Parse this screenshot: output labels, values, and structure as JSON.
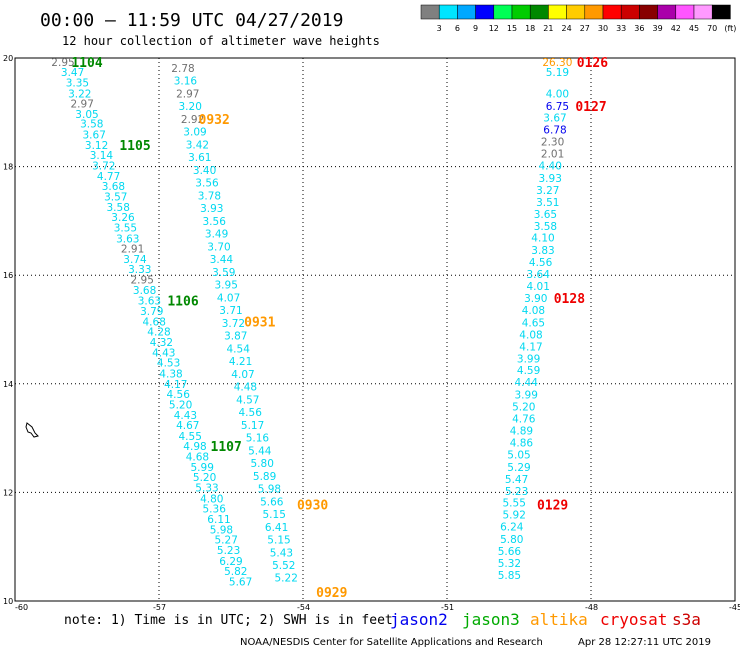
{
  "header": {
    "title": "00:00 — 11:59 UTC 04/27/2019",
    "subtitle": "12 hour collection of altimeter wave heights"
  },
  "colorbar": {
    "labels": [
      "3",
      "6",
      "9",
      "12",
      "15",
      "18",
      "21",
      "24",
      "27",
      "30",
      "33",
      "36",
      "39",
      "42",
      "45",
      "70",
      "(ft)"
    ],
    "colors": [
      "#808080",
      "#00e5ff",
      "#00a8ff",
      "#0000ff",
      "#00ff55",
      "#00cc00",
      "#008800",
      "#ffff00",
      "#ffcc00",
      "#ff9900",
      "#ff0000",
      "#cc0000",
      "#880000",
      "#aa00aa",
      "#ff55ff",
      "#ff99ff",
      "#000000"
    ]
  },
  "footer": {
    "note": "note: 1) Time is in UTC; 2) SWH is in feet",
    "credit": "NOAA/NESDIS Center for Satellite Applications and Research",
    "timestamp": "Apr 28 12:27:11 UTC 2019",
    "satellites": [
      {
        "name": "jason2",
        "color": "#0000ee"
      },
      {
        "name": "jason3",
        "color": "#00aa00"
      },
      {
        "name": "altika",
        "color": "#ff9900"
      },
      {
        "name": "cryosat",
        "color": "#ee0000"
      },
      {
        "name": "s3a",
        "color": "#cc0000"
      }
    ]
  },
  "chart_data": {
    "type": "scatter",
    "title": "00:00 — 11:59 UTC 04/27/2019",
    "subtitle": "12 hour collection of altimeter wave heights",
    "xlabel": "",
    "ylabel": "",
    "xlim": [
      -60,
      -45
    ],
    "ylim": [
      10,
      20
    ],
    "xticks": [
      -60,
      -57,
      -54,
      -51,
      -48,
      -45
    ],
    "xtick_labels": [
      "-60",
      "-57",
      "-54",
      "-51",
      "-48",
      "-45"
    ],
    "yticks": [
      10,
      12,
      14,
      16,
      18,
      20
    ],
    "ytick_labels": [
      "10",
      "12",
      "14",
      "16",
      "18",
      "20"
    ],
    "grid": true,
    "palette": {
      "gray": "#707070",
      "cyan": "#00d8f0",
      "orange": "#ff9900",
      "green": "#008800",
      "red": "#ee0000",
      "blue": "#0000ee"
    },
    "swh_value_labels": [
      {
        "x": -59.0,
        "y": 19.93,
        "text": "2.95",
        "c": "gray"
      },
      {
        "x": -58.8,
        "y": 19.74,
        "text": "3.47",
        "c": "cyan"
      },
      {
        "x": -58.7,
        "y": 19.55,
        "text": "3.35",
        "c": "cyan"
      },
      {
        "x": -58.65,
        "y": 19.35,
        "text": "3.22",
        "c": "cyan"
      },
      {
        "x": -58.6,
        "y": 19.16,
        "text": "2.97",
        "c": "gray"
      },
      {
        "x": -58.5,
        "y": 18.97,
        "text": "3.05",
        "c": "cyan"
      },
      {
        "x": -58.4,
        "y": 18.79,
        "text": "3.58",
        "c": "cyan"
      },
      {
        "x": -58.35,
        "y": 18.59,
        "text": "3.67",
        "c": "cyan"
      },
      {
        "x": -58.3,
        "y": 18.4,
        "text": "3.12",
        "c": "cyan"
      },
      {
        "x": -58.2,
        "y": 18.21,
        "text": "3.14",
        "c": "cyan"
      },
      {
        "x": -58.15,
        "y": 18.02,
        "text": "3.72",
        "c": "cyan"
      },
      {
        "x": -58.05,
        "y": 17.83,
        "text": "4.77",
        "c": "cyan"
      },
      {
        "x": -57.95,
        "y": 17.64,
        "text": "3.68",
        "c": "cyan"
      },
      {
        "x": -57.9,
        "y": 17.45,
        "text": "3.57",
        "c": "cyan"
      },
      {
        "x": -57.85,
        "y": 17.26,
        "text": "3.58",
        "c": "cyan"
      },
      {
        "x": -57.75,
        "y": 17.07,
        "text": "3.26",
        "c": "cyan"
      },
      {
        "x": -57.7,
        "y": 16.88,
        "text": "3.55",
        "c": "cyan"
      },
      {
        "x": -57.65,
        "y": 16.68,
        "text": "3.63",
        "c": "cyan"
      },
      {
        "x": -57.55,
        "y": 16.49,
        "text": "2.91",
        "c": "gray"
      },
      {
        "x": -57.5,
        "y": 16.3,
        "text": "3.74",
        "c": "cyan"
      },
      {
        "x": -57.4,
        "y": 16.11,
        "text": "3.33",
        "c": "cyan"
      },
      {
        "x": -57.35,
        "y": 15.92,
        "text": "2.95",
        "c": "gray"
      },
      {
        "x": -57.3,
        "y": 15.73,
        "text": "3.68",
        "c": "cyan"
      },
      {
        "x": -57.2,
        "y": 15.53,
        "text": "3.63",
        "c": "cyan"
      },
      {
        "x": -57.15,
        "y": 15.34,
        "text": "3.79",
        "c": "cyan"
      },
      {
        "x": -57.1,
        "y": 15.15,
        "text": "4.68",
        "c": "cyan"
      },
      {
        "x": -57.0,
        "y": 14.96,
        "text": "4.28",
        "c": "cyan"
      },
      {
        "x": -56.95,
        "y": 14.77,
        "text": "4.32",
        "c": "cyan"
      },
      {
        "x": -56.9,
        "y": 14.58,
        "text": "4.43",
        "c": "cyan"
      },
      {
        "x": -56.8,
        "y": 14.39,
        "text": "4.53",
        "c": "cyan"
      },
      {
        "x": -56.75,
        "y": 14.19,
        "text": "4.38",
        "c": "cyan"
      },
      {
        "x": -56.65,
        "y": 14.0,
        "text": "4.17",
        "c": "cyan"
      },
      {
        "x": -56.6,
        "y": 13.81,
        "text": "4.56",
        "c": "cyan"
      },
      {
        "x": -56.55,
        "y": 13.62,
        "text": "5.20",
        "c": "cyan"
      },
      {
        "x": -56.45,
        "y": 13.43,
        "text": "4.43",
        "c": "cyan"
      },
      {
        "x": -56.4,
        "y": 13.24,
        "text": "4.67",
        "c": "cyan"
      },
      {
        "x": -56.35,
        "y": 13.04,
        "text": "4.55",
        "c": "cyan"
      },
      {
        "x": -56.25,
        "y": 12.85,
        "text": "4.98",
        "c": "cyan"
      },
      {
        "x": -56.2,
        "y": 12.66,
        "text": "4.68",
        "c": "cyan"
      },
      {
        "x": -56.1,
        "y": 12.47,
        "text": "5.99",
        "c": "cyan"
      },
      {
        "x": -56.05,
        "y": 12.28,
        "text": "5.20",
        "c": "cyan"
      },
      {
        "x": -56.0,
        "y": 12.09,
        "text": "5.33",
        "c": "cyan"
      },
      {
        "x": -55.9,
        "y": 11.89,
        "text": "4.80",
        "c": "cyan"
      },
      {
        "x": -55.85,
        "y": 11.7,
        "text": "5.36",
        "c": "cyan"
      },
      {
        "x": -55.75,
        "y": 11.51,
        "text": "6.11",
        "c": "cyan"
      },
      {
        "x": -55.7,
        "y": 11.32,
        "text": "5.98",
        "c": "cyan"
      },
      {
        "x": -55.6,
        "y": 11.13,
        "text": "5.27",
        "c": "cyan"
      },
      {
        "x": -55.55,
        "y": 10.94,
        "text": "5.23",
        "c": "cyan"
      },
      {
        "x": -55.5,
        "y": 10.74,
        "text": "6.29",
        "c": "cyan"
      },
      {
        "x": -55.4,
        "y": 10.55,
        "text": "5.82",
        "c": "cyan"
      },
      {
        "x": -55.3,
        "y": 10.36,
        "text": "5.67",
        "c": "cyan"
      },
      {
        "x": -56.5,
        "y": 19.82,
        "text": "2.78",
        "c": "gray"
      },
      {
        "x": -56.45,
        "y": 19.59,
        "text": "3.16",
        "c": "cyan"
      },
      {
        "x": -56.4,
        "y": 19.35,
        "text": "2.97",
        "c": "gray"
      },
      {
        "x": -56.35,
        "y": 19.12,
        "text": "3.20",
        "c": "cyan"
      },
      {
        "x": -56.3,
        "y": 18.88,
        "text": "2.92",
        "c": "gray"
      },
      {
        "x": -56.25,
        "y": 18.65,
        "text": "3.09",
        "c": "cyan"
      },
      {
        "x": -56.2,
        "y": 18.41,
        "text": "3.42",
        "c": "cyan"
      },
      {
        "x": -56.15,
        "y": 18.18,
        "text": "3.61",
        "c": "cyan"
      },
      {
        "x": -56.05,
        "y": 17.94,
        "text": "3.40",
        "c": "cyan"
      },
      {
        "x": -56.0,
        "y": 17.71,
        "text": "3.56",
        "c": "cyan"
      },
      {
        "x": -55.95,
        "y": 17.47,
        "text": "3.78",
        "c": "cyan"
      },
      {
        "x": -55.9,
        "y": 17.24,
        "text": "3.93",
        "c": "cyan"
      },
      {
        "x": -55.85,
        "y": 17.0,
        "text": "3.56",
        "c": "cyan"
      },
      {
        "x": -55.8,
        "y": 16.77,
        "text": "3.49",
        "c": "cyan"
      },
      {
        "x": -55.75,
        "y": 16.53,
        "text": "3.70",
        "c": "cyan"
      },
      {
        "x": -55.7,
        "y": 16.3,
        "text": "3.44",
        "c": "cyan"
      },
      {
        "x": -55.65,
        "y": 16.06,
        "text": "3.59",
        "c": "cyan"
      },
      {
        "x": -55.6,
        "y": 15.83,
        "text": "3.95",
        "c": "cyan"
      },
      {
        "x": -55.55,
        "y": 15.59,
        "text": "4.07",
        "c": "cyan"
      },
      {
        "x": -55.5,
        "y": 15.36,
        "text": "3.71",
        "c": "cyan"
      },
      {
        "x": -55.45,
        "y": 15.12,
        "text": "3.72",
        "c": "cyan"
      },
      {
        "x": -55.4,
        "y": 14.89,
        "text": "3.87",
        "c": "cyan"
      },
      {
        "x": -55.35,
        "y": 14.65,
        "text": "4.54",
        "c": "cyan"
      },
      {
        "x": -55.3,
        "y": 14.42,
        "text": "4.21",
        "c": "cyan"
      },
      {
        "x": -55.25,
        "y": 14.18,
        "text": "4.07",
        "c": "cyan"
      },
      {
        "x": -55.2,
        "y": 13.95,
        "text": "4.48",
        "c": "cyan"
      },
      {
        "x": -55.15,
        "y": 13.71,
        "text": "4.57",
        "c": "cyan"
      },
      {
        "x": -55.1,
        "y": 13.48,
        "text": "4.56",
        "c": "cyan"
      },
      {
        "x": -55.05,
        "y": 13.24,
        "text": "5.17",
        "c": "cyan"
      },
      {
        "x": -54.95,
        "y": 13.01,
        "text": "5.16",
        "c": "cyan"
      },
      {
        "x": -54.9,
        "y": 12.77,
        "text": "5.44",
        "c": "cyan"
      },
      {
        "x": -54.85,
        "y": 12.54,
        "text": "5.80",
        "c": "cyan"
      },
      {
        "x": -54.8,
        "y": 12.3,
        "text": "5.89",
        "c": "cyan"
      },
      {
        "x": -54.7,
        "y": 12.07,
        "text": "5.98",
        "c": "cyan"
      },
      {
        "x": -54.65,
        "y": 11.83,
        "text": "5.66",
        "c": "cyan"
      },
      {
        "x": -54.6,
        "y": 11.6,
        "text": "5.15",
        "c": "cyan"
      },
      {
        "x": -54.55,
        "y": 11.36,
        "text": "6.41",
        "c": "cyan"
      },
      {
        "x": -54.5,
        "y": 11.13,
        "text": "5.15",
        "c": "cyan"
      },
      {
        "x": -54.45,
        "y": 10.89,
        "text": "5.43",
        "c": "cyan"
      },
      {
        "x": -54.4,
        "y": 10.66,
        "text": "5.52",
        "c": "cyan"
      },
      {
        "x": -54.35,
        "y": 10.43,
        "text": "5.22",
        "c": "cyan"
      },
      {
        "x": -48.7,
        "y": 19.93,
        "text": "26.30",
        "c": "orange"
      },
      {
        "x": -48.7,
        "y": 19.74,
        "text": "5.19",
        "c": "cyan"
      },
      {
        "x": -48.7,
        "y": 19.35,
        "text": "4.00",
        "c": "cyan"
      },
      {
        "x": -48.7,
        "y": 19.12,
        "text": "6.75",
        "c": "blue"
      },
      {
        "x": -48.75,
        "y": 18.9,
        "text": "3.67",
        "c": "cyan"
      },
      {
        "x": -48.75,
        "y": 18.68,
        "text": "6.78",
        "c": "blue"
      },
      {
        "x": -48.8,
        "y": 18.46,
        "text": "2.30",
        "c": "gray"
      },
      {
        "x": -48.8,
        "y": 18.24,
        "text": "2.01",
        "c": "gray"
      },
      {
        "x": -48.85,
        "y": 18.02,
        "text": "4.40",
        "c": "cyan"
      },
      {
        "x": -48.85,
        "y": 17.79,
        "text": "3.93",
        "c": "cyan"
      },
      {
        "x": -48.9,
        "y": 17.57,
        "text": "3.27",
        "c": "cyan"
      },
      {
        "x": -48.9,
        "y": 17.35,
        "text": "3.51",
        "c": "cyan"
      },
      {
        "x": -48.95,
        "y": 17.13,
        "text": "3.65",
        "c": "cyan"
      },
      {
        "x": -48.95,
        "y": 16.91,
        "text": "3.58",
        "c": "cyan"
      },
      {
        "x": -49.0,
        "y": 16.69,
        "text": "4.10",
        "c": "cyan"
      },
      {
        "x": -49.0,
        "y": 16.46,
        "text": "3.83",
        "c": "cyan"
      },
      {
        "x": -49.05,
        "y": 16.24,
        "text": "4.56",
        "c": "cyan"
      },
      {
        "x": -49.1,
        "y": 16.02,
        "text": "3.64",
        "c": "cyan"
      },
      {
        "x": -49.1,
        "y": 15.8,
        "text": "4.01",
        "c": "cyan"
      },
      {
        "x": -49.15,
        "y": 15.58,
        "text": "3.90",
        "c": "cyan"
      },
      {
        "x": -49.2,
        "y": 15.36,
        "text": "4.08",
        "c": "cyan"
      },
      {
        "x": -49.2,
        "y": 15.13,
        "text": "4.65",
        "c": "cyan"
      },
      {
        "x": -49.25,
        "y": 14.91,
        "text": "4.08",
        "c": "cyan"
      },
      {
        "x": -49.25,
        "y": 14.69,
        "text": "4.17",
        "c": "cyan"
      },
      {
        "x": -49.3,
        "y": 14.47,
        "text": "3.99",
        "c": "cyan"
      },
      {
        "x": -49.3,
        "y": 14.25,
        "text": "4.59",
        "c": "cyan"
      },
      {
        "x": -49.35,
        "y": 14.03,
        "text": "4.44",
        "c": "cyan"
      },
      {
        "x": -49.35,
        "y": 13.8,
        "text": "3.99",
        "c": "cyan"
      },
      {
        "x": -49.4,
        "y": 13.58,
        "text": "5.20",
        "c": "cyan"
      },
      {
        "x": -49.4,
        "y": 13.36,
        "text": "4.76",
        "c": "cyan"
      },
      {
        "x": -49.45,
        "y": 13.14,
        "text": "4.89",
        "c": "cyan"
      },
      {
        "x": -49.45,
        "y": 12.92,
        "text": "4.86",
        "c": "cyan"
      },
      {
        "x": -49.5,
        "y": 12.7,
        "text": "5.05",
        "c": "cyan"
      },
      {
        "x": -49.5,
        "y": 12.47,
        "text": "5.29",
        "c": "cyan"
      },
      {
        "x": -49.55,
        "y": 12.25,
        "text": "5.47",
        "c": "cyan"
      },
      {
        "x": -49.55,
        "y": 12.03,
        "text": "5.23",
        "c": "cyan"
      },
      {
        "x": -49.6,
        "y": 11.81,
        "text": "5.55",
        "c": "cyan"
      },
      {
        "x": -49.6,
        "y": 11.59,
        "text": "5.92",
        "c": "cyan"
      },
      {
        "x": -49.65,
        "y": 11.37,
        "text": "6.24",
        "c": "cyan"
      },
      {
        "x": -49.65,
        "y": 11.14,
        "text": "5.80",
        "c": "cyan"
      },
      {
        "x": -49.7,
        "y": 10.92,
        "text": "5.66",
        "c": "cyan"
      },
      {
        "x": -49.7,
        "y": 10.7,
        "text": "5.32",
        "c": "cyan"
      },
      {
        "x": -49.7,
        "y": 10.48,
        "text": "5.85",
        "c": "cyan"
      }
    ],
    "pass_labels": [
      {
        "x": -58.5,
        "y": 19.93,
        "text": "1104",
        "c": "green"
      },
      {
        "x": -57.5,
        "y": 18.4,
        "text": "1105",
        "c": "green"
      },
      {
        "x": -56.5,
        "y": 15.53,
        "text": "1106",
        "c": "green"
      },
      {
        "x": -55.6,
        "y": 12.85,
        "text": "1107",
        "c": "green"
      },
      {
        "x": -55.85,
        "y": 18.88,
        "text": "0932",
        "c": "orange"
      },
      {
        "x": -54.9,
        "y": 15.15,
        "text": "0931",
        "c": "orange"
      },
      {
        "x": -53.8,
        "y": 11.78,
        "text": "0930",
        "c": "orange"
      },
      {
        "x": -53.4,
        "y": 10.17,
        "text": "0929",
        "c": "orange"
      },
      {
        "x": -47.97,
        "y": 19.93,
        "text": "0126",
        "c": "red"
      },
      {
        "x": -48.0,
        "y": 19.12,
        "text": "0127",
        "c": "red"
      },
      {
        "x": -48.45,
        "y": 15.58,
        "text": "0128",
        "c": "red"
      },
      {
        "x": -48.8,
        "y": 11.78,
        "text": "0129",
        "c": "red"
      }
    ]
  }
}
